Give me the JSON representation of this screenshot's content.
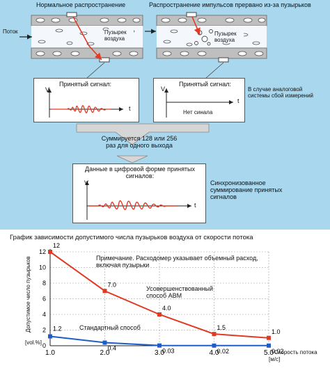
{
  "top": {
    "left_title": "Нормальное распространение",
    "right_title": "Распространение импульсов прервано из-за пузырьков",
    "flow_label": "Поток",
    "bubble_left": "Пузырек воздуха",
    "bubble_right": "Пузырек воздуха"
  },
  "boxes": {
    "left_caption": "Принятый сигнал:",
    "right_caption": "Принятый сигнал:",
    "no_signal": "Нет синала",
    "analog_note": "В случае аналоговой системы сбой измерений",
    "v_label": "V",
    "t_label": "t"
  },
  "middle": {
    "sum_text": "Суммируется 128 или 256 раз для одного выхода",
    "digital_caption": "Данные в цифровой форме принятых сигналов:",
    "sync_note": "Синхронизованное суммирование принятых сигналов"
  },
  "chart_data": {
    "type": "line",
    "title": "График зависимости допустимого числа пузырьков воздуха от скорости потока",
    "ylabel": "Допустимое число пузырьков",
    "yunit": "[vol.%]",
    "xlabel": "Скорость потока",
    "xunit": "[м/с]",
    "xlim": [
      1.0,
      5.0
    ],
    "ylim": [
      0,
      12
    ],
    "xticks": [
      "1.0",
      "2.0",
      "3.0",
      "4.0",
      "5.0"
    ],
    "yticks": [
      "0",
      "2",
      "4",
      "6",
      "8",
      "10",
      "12"
    ],
    "x": [
      1.0,
      2.0,
      3.0,
      4.0,
      5.0
    ],
    "series": [
      {
        "name": "Усовершенствованный способ ABM",
        "values": [
          12,
          7.0,
          4.0,
          1.5,
          1.0
        ],
        "labels": [
          "12",
          "7.0",
          "4.0",
          "1.5",
          "1.0"
        ],
        "color": "#e03a24"
      },
      {
        "name": "Стандартный способ",
        "values": [
          1.2,
          0.4,
          0.03,
          0.02,
          0.02
        ],
        "labels": [
          "1.2",
          "0.4",
          "0.03",
          "0.02",
          "0.02"
        ],
        "color": "#1f5cc8"
      }
    ],
    "note": "Примечание. Расходомер указывает объемный расход, включая пузырьки",
    "grid": true
  }
}
